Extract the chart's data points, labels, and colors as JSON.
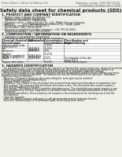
{
  "bg_color": "#f0f0eb",
  "title": "Safety data sheet for chemical products (SDS)",
  "header_left": "Product Name: Lithium Ion Battery Cell",
  "header_right_line1": "Substance number: 1990-049-00015",
  "header_right_line2": "Established / Revision: Dec.1.2018",
  "section1_title": "1. PRODUCT AND COMPANY IDENTIFICATION",
  "section1_lines": [
    " • Product name: Lithium Ion Battery Cell",
    " • Product code: Cylindrical-type cell",
    "    INR18650, INR18650L, INR18650A",
    " • Company name:    Sanyo Electric Co., Ltd., Mobile Energy Company",
    " • Address:          2001 Kamiakamachi, Sumoto-City, Hyogo, Japan",
    " • Telephone number: +81-799-26-4111",
    " • Fax number: +81-799-26-4129",
    " • Emergency telephone number (daytime): +81-799-26-2662",
    "    (Night and holiday): +81-799-26-4101"
  ],
  "section2_title": "2. COMPOSITION / INFORMATION ON INGREDIENTS",
  "section2_intro": " • Substance or preparation: Preparation",
  "section2_sub": " • Information about the chemical nature of product:",
  "table_headers": [
    "Chemical chemical name /\nSeveral name",
    "CAS number",
    "Concentration /\nConcentration range",
    "Classification and\nhazard labeling"
  ],
  "table_col1": [
    "Lithium cobalt oxide\n(LiMn-CoO₂O₄)",
    "Iron",
    "Aluminum",
    "Graphite\n(Metal in graphite-I)\n(Al·Mn in graphite-I)",
    "Copper",
    "Organic electrolyte"
  ],
  "table_col2": [
    "-",
    "7439-89-6\n7439-89-6",
    "7429-90-5",
    "-\n17763-40-5\n17763-44-9",
    "7440-50-8",
    "-"
  ],
  "table_col3": [
    "30-50%",
    "15-25%",
    "2-5%",
    "10-20%",
    "5-15%",
    "10-20%"
  ],
  "table_col4": [
    "",
    "-",
    "-",
    "-",
    "Sensitization of the skin\ngroup R42.2",
    "Inflammatory liquid"
  ],
  "section3_title": "3. HAZARDS IDENTIFICATION",
  "section3_para": [
    "   For the battery cell, chemical materials are stored in a hermetically sealed metal case, designed to withstand",
    "temperatures and pressure conditions during normal use. As a result, during normal use, there is no",
    "physical danger of ignition or explosion and thermal-danger of hazardous materials leakage.",
    "   Moreover if exposed to a fire added mechanical shocks, decomposed, written electric without any meas-",
    "the gas release cannot be operated. The battery cell case will be breached of the pressure. hazardous",
    "materials may be released.",
    "   Moreover, if heated strongly by the surrounding fire, some gas may be emitted."
  ],
  "bullet1": " • Most important hazard and effects:",
  "human_header": "   Human health effects:",
  "human_lines": [
    "   Inhalation: The release of the electrolyte has an anesthesia action and stimulates a respiratory tract.",
    "   Skin contact: The release of the electrolyte stimulates a skin. The electrolyte skin contact causes a",
    "   sore and stimulation on the skin.",
    "   Eye contact: The release of the electrolyte stimulates eyes. The electrolyte eye contact causes a sore",
    "   and stimulation on the eye. Especially, a substance that causes a strong inflammation of the eyes is",
    "   contained.",
    "   Environmental effects: Since a battery cell remains in the environment, do not throw out it into the",
    "   environment."
  ],
  "bullet2": " • Specific hazards:",
  "specific_lines": [
    "   If the electrolyte contacts with water, it will generate detrimental hydrogen fluoride.",
    "   Since the (iso)electrolyte is inflammable liquid, do not bring close to fire."
  ]
}
